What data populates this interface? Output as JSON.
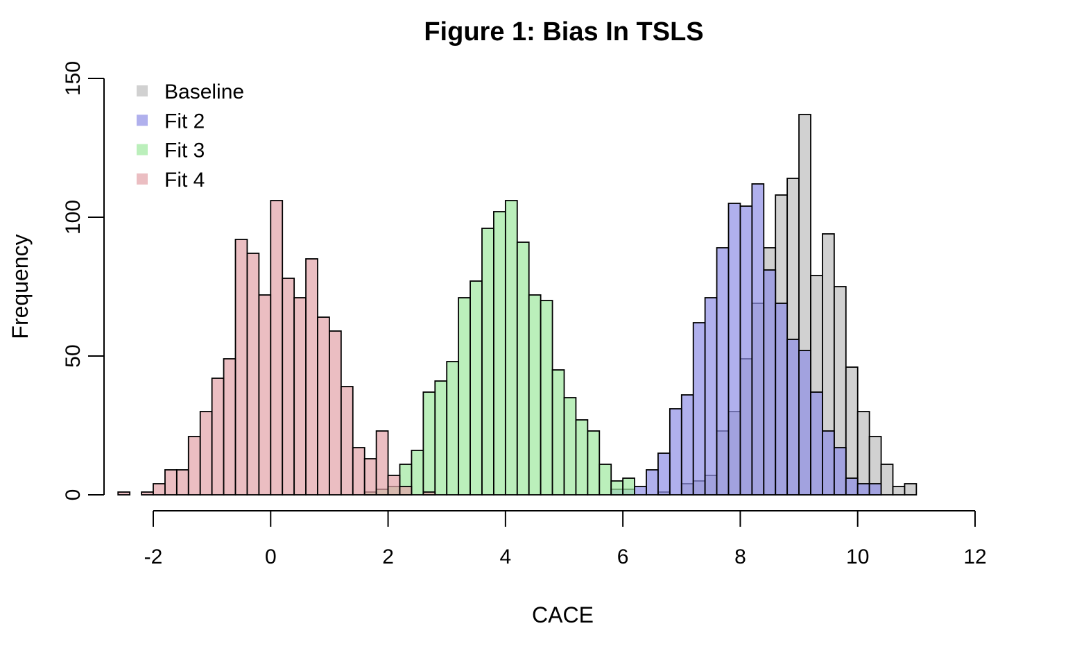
{
  "chart_data": {
    "type": "histogram",
    "title": "Figure 1: Bias In TSLS",
    "xlabel": "CACE",
    "ylabel": "Frequency",
    "xlim": [
      -2,
      12
    ],
    "ylim": [
      0,
      150
    ],
    "xticks": [
      "-2",
      "0",
      "2",
      "4",
      "6",
      "8",
      "10",
      "12"
    ],
    "yticks": [
      "0",
      "50",
      "100",
      "150"
    ],
    "bin_width": 0.2,
    "grid": false,
    "legend_position": "top-left",
    "series": [
      {
        "name": "Baseline",
        "color": "#bebebe",
        "bins": [
          {
            "x0": 6.6,
            "count": 1
          },
          {
            "x0": 7.0,
            "count": 4
          },
          {
            "x0": 7.2,
            "count": 5
          },
          {
            "x0": 7.4,
            "count": 7
          },
          {
            "x0": 7.6,
            "count": 23
          },
          {
            "x0": 7.8,
            "count": 30
          },
          {
            "x0": 8.0,
            "count": 49
          },
          {
            "x0": 8.2,
            "count": 69
          },
          {
            "x0": 8.4,
            "count": 89
          },
          {
            "x0": 8.6,
            "count": 108
          },
          {
            "x0": 8.8,
            "count": 114
          },
          {
            "x0": 9.0,
            "count": 137
          },
          {
            "x0": 9.2,
            "count": 79
          },
          {
            "x0": 9.4,
            "count": 94
          },
          {
            "x0": 9.6,
            "count": 75
          },
          {
            "x0": 9.8,
            "count": 46
          },
          {
            "x0": 10.0,
            "count": 30
          },
          {
            "x0": 10.2,
            "count": 21
          },
          {
            "x0": 10.4,
            "count": 11
          },
          {
            "x0": 10.6,
            "count": 3
          },
          {
            "x0": 10.8,
            "count": 4
          }
        ]
      },
      {
        "name": "Fit 2",
        "color": "#8f8fe6",
        "bins": [
          {
            "x0": 5.8,
            "count": 2
          },
          {
            "x0": 6.0,
            "count": 2
          },
          {
            "x0": 6.2,
            "count": 3
          },
          {
            "x0": 6.4,
            "count": 9
          },
          {
            "x0": 6.6,
            "count": 15
          },
          {
            "x0": 6.8,
            "count": 31
          },
          {
            "x0": 7.0,
            "count": 36
          },
          {
            "x0": 7.2,
            "count": 62
          },
          {
            "x0": 7.4,
            "count": 71
          },
          {
            "x0": 7.6,
            "count": 89
          },
          {
            "x0": 7.8,
            "count": 105
          },
          {
            "x0": 8.0,
            "count": 104
          },
          {
            "x0": 8.2,
            "count": 112
          },
          {
            "x0": 8.4,
            "count": 81
          },
          {
            "x0": 8.6,
            "count": 69
          },
          {
            "x0": 8.8,
            "count": 56
          },
          {
            "x0": 9.0,
            "count": 52
          },
          {
            "x0": 9.2,
            "count": 37
          },
          {
            "x0": 9.4,
            "count": 23
          },
          {
            "x0": 9.6,
            "count": 17
          },
          {
            "x0": 9.8,
            "count": 6
          },
          {
            "x0": 10.0,
            "count": 4
          },
          {
            "x0": 10.2,
            "count": 4
          }
        ]
      },
      {
        "name": "Fit 3",
        "color": "#9ee89e",
        "bins": [
          {
            "x0": 1.6,
            "count": 1
          },
          {
            "x0": 1.8,
            "count": 2
          },
          {
            "x0": 2.0,
            "count": 3
          },
          {
            "x0": 2.2,
            "count": 11
          },
          {
            "x0": 2.4,
            "count": 16
          },
          {
            "x0": 2.6,
            "count": 37
          },
          {
            "x0": 2.8,
            "count": 41
          },
          {
            "x0": 3.0,
            "count": 48
          },
          {
            "x0": 3.2,
            "count": 71
          },
          {
            "x0": 3.4,
            "count": 77
          },
          {
            "x0": 3.6,
            "count": 96
          },
          {
            "x0": 3.8,
            "count": 102
          },
          {
            "x0": 4.0,
            "count": 106
          },
          {
            "x0": 4.2,
            "count": 91
          },
          {
            "x0": 4.4,
            "count": 72
          },
          {
            "x0": 4.6,
            "count": 70
          },
          {
            "x0": 4.8,
            "count": 45
          },
          {
            "x0": 5.0,
            "count": 35
          },
          {
            "x0": 5.2,
            "count": 27
          },
          {
            "x0": 5.4,
            "count": 23
          },
          {
            "x0": 5.6,
            "count": 11
          },
          {
            "x0": 5.8,
            "count": 5
          },
          {
            "x0": 6.0,
            "count": 6
          }
        ]
      },
      {
        "name": "Fit 4",
        "color": "#e3a3a8",
        "bins": [
          {
            "x0": -2.6,
            "count": 1
          },
          {
            "x0": -2.2,
            "count": 1
          },
          {
            "x0": -2.0,
            "count": 4
          },
          {
            "x0": -1.8,
            "count": 9
          },
          {
            "x0": -1.6,
            "count": 9
          },
          {
            "x0": -1.4,
            "count": 21
          },
          {
            "x0": -1.2,
            "count": 30
          },
          {
            "x0": -1.0,
            "count": 42
          },
          {
            "x0": -0.8,
            "count": 49
          },
          {
            "x0": -0.6,
            "count": 92
          },
          {
            "x0": -0.4,
            "count": 87
          },
          {
            "x0": -0.2,
            "count": 72
          },
          {
            "x0": 0.0,
            "count": 106
          },
          {
            "x0": 0.2,
            "count": 78
          },
          {
            "x0": 0.4,
            "count": 71
          },
          {
            "x0": 0.6,
            "count": 85
          },
          {
            "x0": 0.8,
            "count": 64
          },
          {
            "x0": 1.0,
            "count": 59
          },
          {
            "x0": 1.2,
            "count": 39
          },
          {
            "x0": 1.4,
            "count": 17
          },
          {
            "x0": 1.6,
            "count": 13
          },
          {
            "x0": 1.8,
            "count": 23
          },
          {
            "x0": 2.0,
            "count": 7
          },
          {
            "x0": 2.2,
            "count": 3
          },
          {
            "x0": 2.6,
            "count": 1
          }
        ]
      }
    ]
  }
}
